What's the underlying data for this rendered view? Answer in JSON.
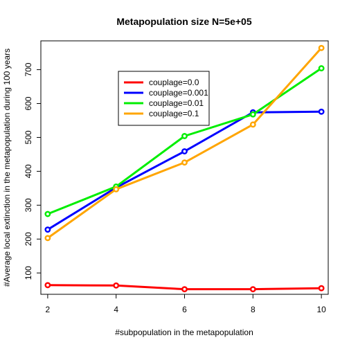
{
  "chart_data": {
    "type": "line",
    "title": "Metapopulation size N=5e+05",
    "xlabel": "#subpopulation in the metapopulation",
    "ylabel": "#Average local extinction in the metapopulation during 100 years",
    "x": [
      2,
      4,
      6,
      8,
      10
    ],
    "xlim": [
      1.8,
      10.2
    ],
    "ylim": [
      37,
      785
    ],
    "xticks": [
      2,
      4,
      6,
      8,
      10
    ],
    "yticks": [
      100,
      200,
      300,
      400,
      500,
      600,
      700
    ],
    "grid": false,
    "legend_position": "top-center",
    "series": [
      {
        "name": "couplage=0.0",
        "color": "#ff0000",
        "values": [
          64,
          63,
          52,
          52,
          55
        ]
      },
      {
        "name": "couplage=0.001",
        "color": "#0000ff",
        "values": [
          228,
          352,
          459,
          574,
          576
        ]
      },
      {
        "name": "couplage=0.01",
        "color": "#00ee00",
        "values": [
          274,
          355,
          504,
          568,
          704
        ]
      },
      {
        "name": "couplage=0.1",
        "color": "#ffa500",
        "values": [
          203,
          347,
          426,
          538,
          764
        ]
      }
    ]
  }
}
